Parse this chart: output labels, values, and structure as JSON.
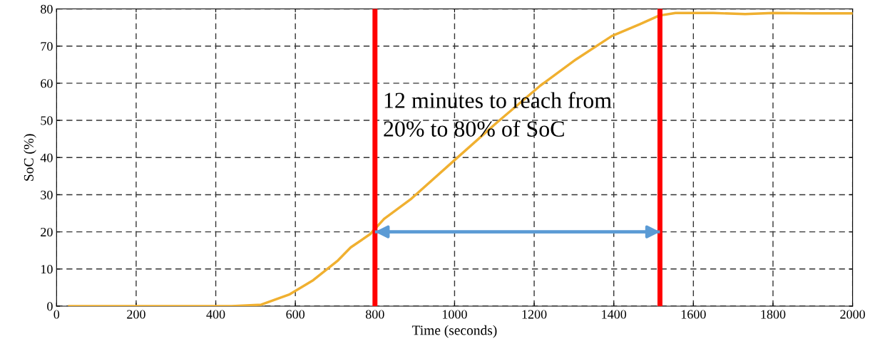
{
  "chart_data": {
    "type": "line",
    "xlabel": "Time (seconds)",
    "ylabel": "SoC (%)",
    "x": [
      32,
      200,
      300,
      440,
      514,
      586,
      645,
      707,
      739,
      788,
      823,
      889,
      1000,
      1105,
      1216,
      1305,
      1395,
      1466,
      1514,
      1555,
      1650,
      1730,
      1800,
      1900,
      2000
    ],
    "series": [
      {
        "color": "#f0b030",
        "values": [
          0,
          0,
          0,
          0,
          0.4,
          3.2,
          7,
          12.3,
          15.8,
          19.4,
          23.5,
          28.7,
          39.3,
          49.3,
          59.4,
          66.4,
          72.7,
          75.9,
          78.2,
          78.9,
          78.9,
          78.6,
          78.9,
          78.8,
          78.8
        ]
      }
    ],
    "xlim": [
      0,
      2000
    ],
    "xticks": [
      0,
      200,
      400,
      600,
      800,
      1000,
      1200,
      1400,
      1600,
      1800,
      2000
    ],
    "ylim": [
      0,
      80
    ],
    "yticks": [
      0,
      10,
      20,
      30,
      40,
      50,
      60,
      70,
      80
    ],
    "grid": true,
    "line_style": "solid",
    "marker": "none",
    "ref_lines": [
      {
        "axis": "x",
        "value": 800,
        "color": "#ff0000"
      },
      {
        "axis": "x",
        "value": 1516,
        "color": "#ff0000"
      },
      {
        "axis": "y",
        "value": 20,
        "color": "#5b9bd5"
      }
    ],
    "annotations": [
      "12 minutes to reach from\n20% to 80% of SoC"
    ]
  }
}
